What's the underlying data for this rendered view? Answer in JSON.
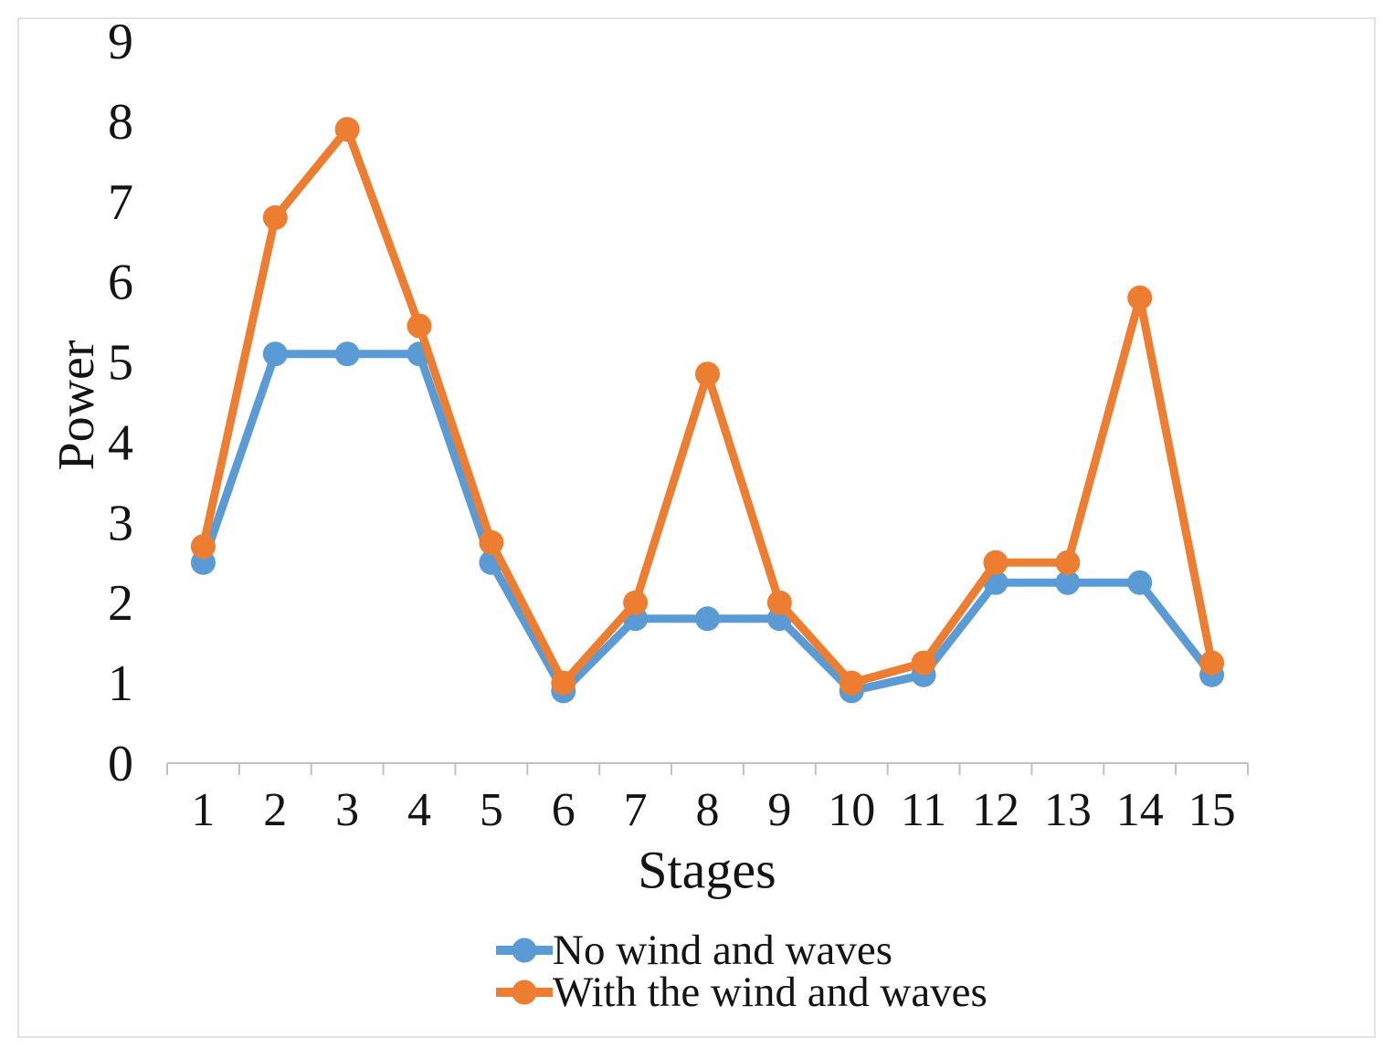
{
  "figure": {
    "background": "#ffffff",
    "frame_color": "#e2e2e5"
  },
  "chart_data": {
    "type": "line",
    "title": "",
    "xlabel": "Stages",
    "ylabel": "Power",
    "categories": [
      "1",
      "2",
      "3",
      "4",
      "5",
      "6",
      "7",
      "8",
      "9",
      "10",
      "11",
      "12",
      "13",
      "14",
      "15"
    ],
    "series": [
      {
        "name": "No wind and waves",
        "color": "#5B9BD5",
        "values": [
          2.5,
          5.1,
          5.1,
          5.1,
          2.5,
          0.9,
          1.8,
          1.8,
          1.8,
          0.9,
          1.1,
          2.25,
          2.25,
          2.25,
          1.1
        ]
      },
      {
        "name": "With the wind and waves",
        "color": "#ED7D31",
        "values": [
          2.7,
          6.8,
          7.9,
          5.45,
          2.75,
          1.0,
          2.0,
          4.85,
          2.0,
          1.0,
          1.25,
          2.5,
          2.5,
          5.8,
          1.25
        ]
      }
    ],
    "ylim": [
      0,
      9
    ],
    "yticks": [
      0,
      1,
      2,
      3,
      4,
      5,
      6,
      7,
      8,
      9
    ],
    "grid": false,
    "legend_position": "bottom",
    "axis_color": "#bfbfbf",
    "text_color": "#141414",
    "marker": "circle",
    "marker_radius": 13.5,
    "line_width": 9
  }
}
